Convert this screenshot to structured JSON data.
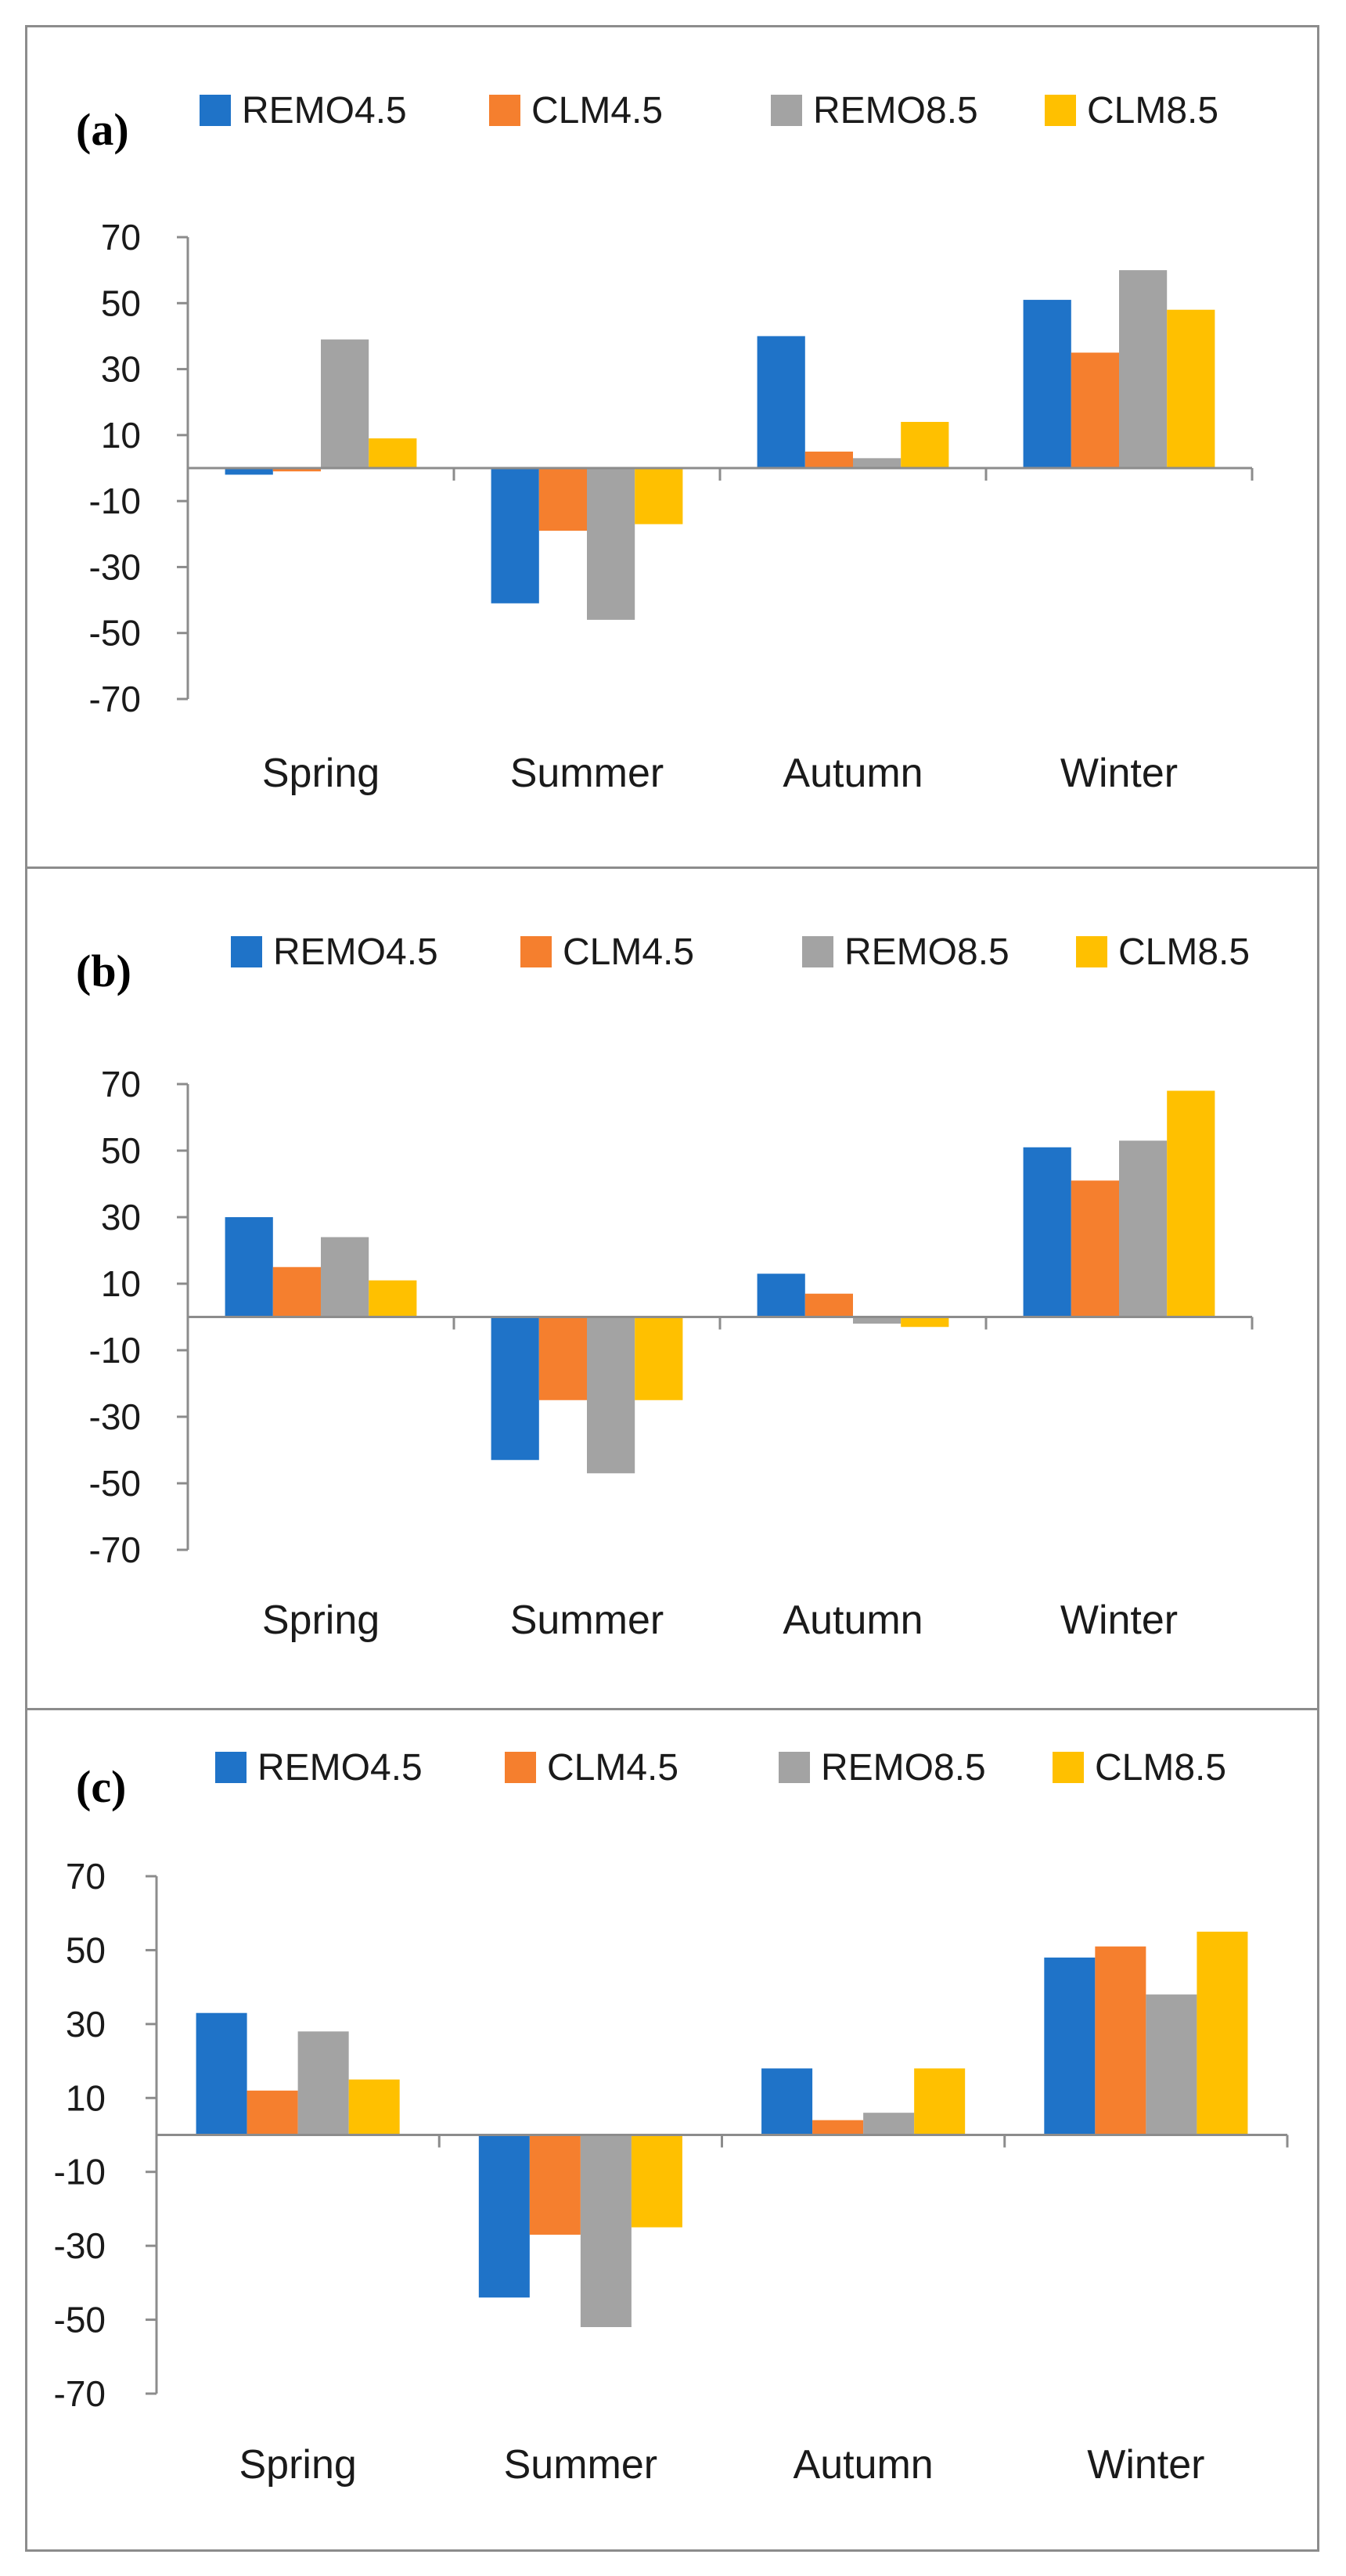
{
  "colors": {
    "REMO4.5": "#1f73c8",
    "CLM4.5": "#f57f2e",
    "REMO8.5": "#a3a3a3",
    "CLM8.5": "#ffc000"
  },
  "chart_data": [
    {
      "type": "bar",
      "panel_label": "(a)",
      "categories": [
        "Spring",
        "Summer",
        "Autumn",
        "Winter"
      ],
      "series": [
        {
          "name": "REMO4.5",
          "values": [
            -2,
            -41,
            40,
            51
          ]
        },
        {
          "name": "CLM4.5",
          "values": [
            -1,
            -19,
            5,
            35
          ]
        },
        {
          "name": "REMO8.5",
          "values": [
            39,
            -46,
            3,
            60
          ]
        },
        {
          "name": "CLM8.5",
          "values": [
            9,
            -17,
            14,
            48
          ]
        }
      ],
      "yticks": [
        "70",
        "50",
        "30",
        "10",
        "-10",
        "-30",
        "-50",
        "-70"
      ],
      "ylim": [
        -70,
        70
      ],
      "title": "",
      "xlabel": "",
      "ylabel": "",
      "legend": "top"
    },
    {
      "type": "bar",
      "panel_label": "(b)",
      "categories": [
        "Spring",
        "Summer",
        "Autumn",
        "Winter"
      ],
      "series": [
        {
          "name": "REMO4.5",
          "values": [
            30,
            -43,
            13,
            51
          ]
        },
        {
          "name": "CLM4.5",
          "values": [
            15,
            -25,
            7,
            41
          ]
        },
        {
          "name": "REMO8.5",
          "values": [
            24,
            -47,
            -2,
            53
          ]
        },
        {
          "name": "CLM8.5",
          "values": [
            11,
            -25,
            -3,
            68
          ]
        }
      ],
      "yticks": [
        "70",
        "50",
        "30",
        "10",
        "-10",
        "-30",
        "-50",
        "-70"
      ],
      "ylim": [
        -70,
        70
      ],
      "title": "",
      "xlabel": "",
      "ylabel": "",
      "legend": "top"
    },
    {
      "type": "bar",
      "panel_label": "(c)",
      "categories": [
        "Spring",
        "Summer",
        "Autumn",
        "Winter"
      ],
      "series": [
        {
          "name": "REMO4.5",
          "values": [
            33,
            -44,
            18,
            48
          ]
        },
        {
          "name": "CLM4.5",
          "values": [
            12,
            -27,
            4,
            51
          ]
        },
        {
          "name": "REMO8.5",
          "values": [
            28,
            -52,
            6,
            38
          ]
        },
        {
          "name": "CLM8.5",
          "values": [
            15,
            -25,
            18,
            55
          ]
        }
      ],
      "yticks": [
        "70",
        "50",
        "30",
        "10",
        "-10",
        "-30",
        "-50",
        "-70"
      ],
      "ylim": [
        -70,
        70
      ],
      "title": "",
      "xlabel": "",
      "ylabel": "",
      "legend": "top"
    }
  ]
}
